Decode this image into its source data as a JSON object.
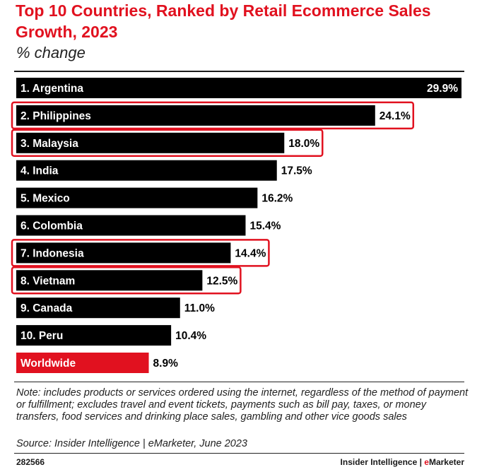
{
  "chart_data": {
    "type": "bar",
    "orientation": "horizontal",
    "title": "Top 10 Countries, Ranked by Retail Ecommerce Sales Growth, 2023",
    "subtitle": "% change",
    "categories": [
      "1. Argentina",
      "2. Philippines",
      "3. Malaysia",
      "4. India",
      "5. Mexico",
      "6. Colombia",
      "7. Indonesia",
      "8. Vietnam",
      "9. Canada",
      "10. Peru",
      "Worldwide"
    ],
    "values": [
      29.9,
      24.1,
      18.0,
      17.5,
      16.2,
      15.4,
      14.4,
      12.5,
      11.0,
      10.4,
      8.9
    ],
    "value_labels": [
      "29.9%",
      "24.1%",
      "18.0%",
      "17.5%",
      "16.2%",
      "15.4%",
      "14.4%",
      "12.5%",
      "11.0%",
      "10.4%",
      "8.9%"
    ],
    "unit": "%",
    "highlighted": [
      "2. Philippines",
      "3. Malaysia",
      "7. Indonesia",
      "8. Vietnam"
    ],
    "xlim": [
      0,
      29.9
    ],
    "grid": false,
    "colors": {
      "bar": "#000000",
      "worldwide_bar": "#e1111f",
      "highlight_box": "#e1111f",
      "title": "#e1111f"
    }
  },
  "note": "Note: includes products or services ordered using the internet, regardless of the method of payment or fulfillment; excludes travel and event tickets, payments such as bill pay, taxes, or money transfers, food services and drinking place sales, gambling and other vice goods sales",
  "source": "Source: Insider Intelligence | eMarketer, June 2023",
  "footer": {
    "chart_id": "282566",
    "brand_main": "Insider Intelligence | ",
    "brand_e": "e",
    "brand_rest": "Marketer"
  }
}
